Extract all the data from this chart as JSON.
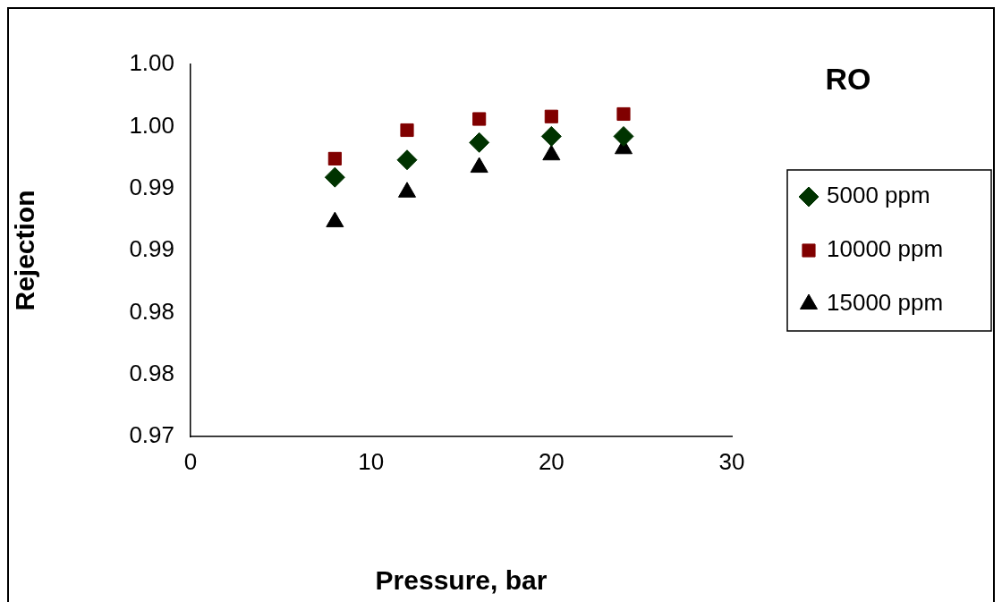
{
  "chart_data": {
    "type": "scatter",
    "title": "RO",
    "xlabel": "Pressure, bar",
    "ylabel": "Rejection",
    "xlim": [
      0,
      30
    ],
    "xticks": [
      0,
      10,
      20,
      30
    ],
    "ylim": [
      0.97,
      1.0
    ],
    "yticks": [
      {
        "value": 0.97,
        "label": "0.97"
      },
      {
        "value": 0.975,
        "label": "0.98"
      },
      {
        "value": 0.98,
        "label": "0.98"
      },
      {
        "value": 0.985,
        "label": "0.99"
      },
      {
        "value": 0.99,
        "label": "0.99"
      },
      {
        "value": 0.995,
        "label": "1.00"
      },
      {
        "value": 1.0,
        "label": "1.00"
      }
    ],
    "grid": false,
    "legend": "right",
    "series": [
      {
        "name": "5000 ppm",
        "color": "#003300",
        "marker": "diamond",
        "x": [
          8,
          12,
          16,
          20,
          24
        ],
        "values": [
          0.9909,
          0.9923,
          0.9937,
          0.9942,
          0.9942
        ]
      },
      {
        "name": "10000 ppm",
        "color": "#800000",
        "marker": "square",
        "x": [
          8,
          12,
          16,
          20,
          24
        ],
        "values": [
          0.9924,
          0.9947,
          0.9956,
          0.9958,
          0.996
        ]
      },
      {
        "name": "15000 ppm",
        "color": "#000000",
        "marker": "triangle",
        "x": [
          8,
          12,
          16,
          20,
          24
        ],
        "values": [
          0.9873,
          0.9897,
          0.9917,
          0.9927,
          0.9932
        ]
      }
    ]
  }
}
